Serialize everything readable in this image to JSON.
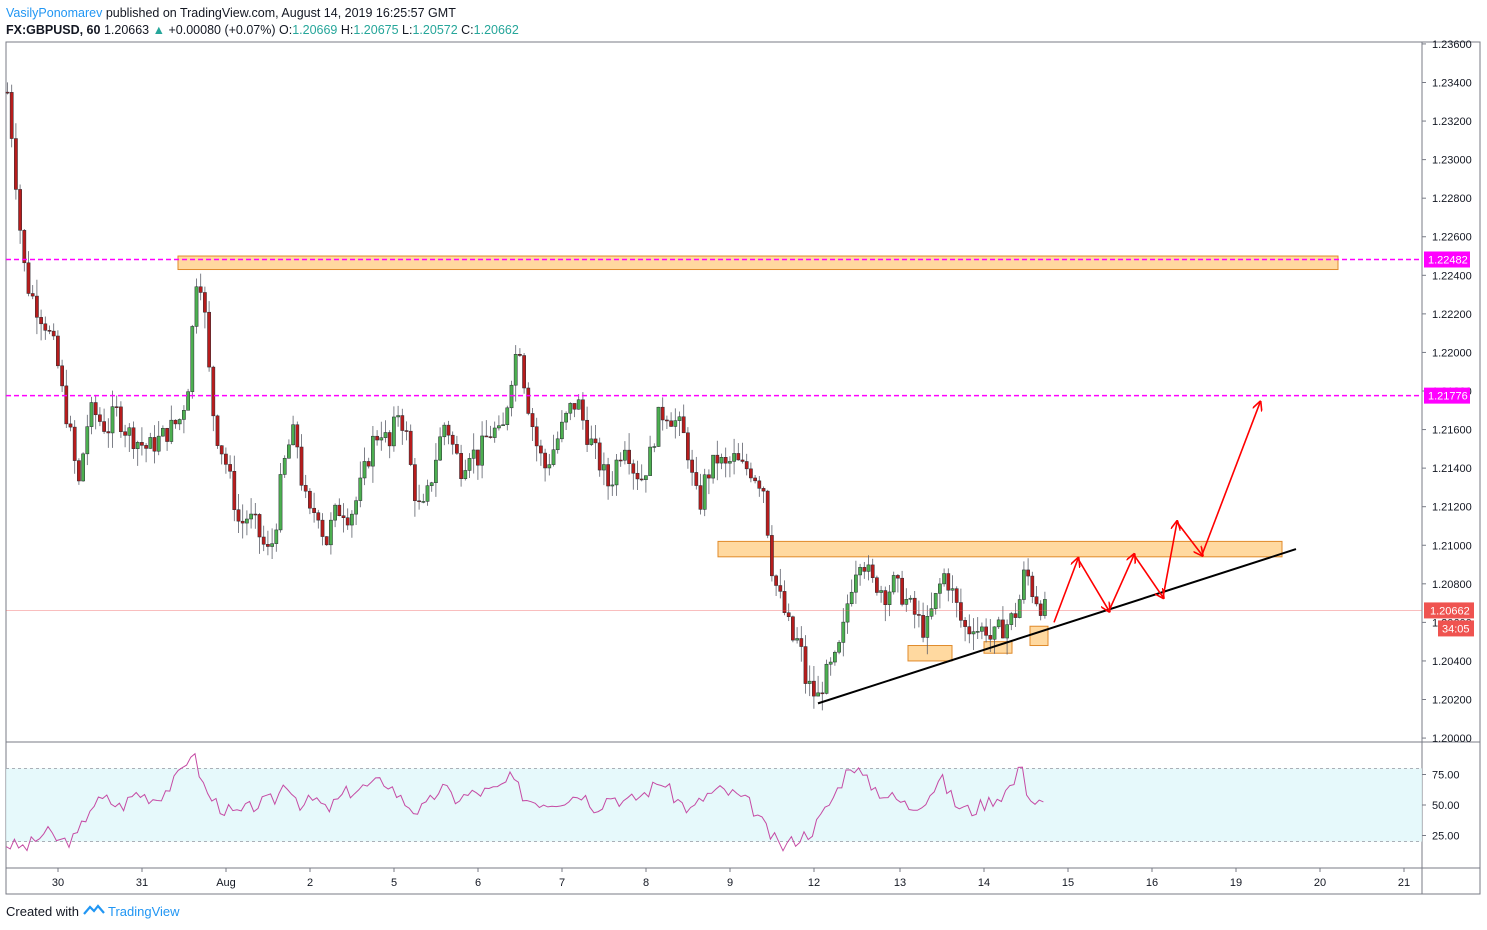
{
  "header": {
    "author": "VasilyPonomarev",
    "published_text": "published on TradingView.com, August 14, 2019 16:25:57 GMT",
    "symbol": "FX:GBPUSD, 60",
    "last": "1.20663",
    "change": "+0.00080 (+0.07%)",
    "o_label": "O:",
    "o": "1.20669",
    "h_label": "H:",
    "h": "1.20675",
    "l_label": "L:",
    "l": "1.20572",
    "c_label": "C:",
    "c": "1.20662"
  },
  "footer": {
    "created_with": "Created with",
    "brand": "TradingView"
  },
  "colors": {
    "up": "#26a69a",
    "down": "#b71c1c",
    "candle_body_up": "#4caf50",
    "zone_fill": "#ffcc80",
    "zone_stroke": "#e08a2a",
    "level_line": "#ff00ff",
    "arrow": "#ff0000",
    "trendline": "#000000",
    "rsi_line": "#c54ba4",
    "rsi_band": "#e0f7fa",
    "price_tag": "#ef5350"
  },
  "chart_data": {
    "type": "candlestick",
    "symbol": "FX:GBPUSD",
    "timeframe": "60",
    "price_axis_ticks": [
      "1.23600",
      "1.23400",
      "1.23200",
      "1.23000",
      "1.22800",
      "1.22600",
      "1.22400",
      "1.22200",
      "1.22000",
      "1.21800",
      "1.21600",
      "1.21400",
      "1.21200",
      "1.21000",
      "1.20800",
      "1.20600",
      "1.20400",
      "1.20200",
      "1.20000"
    ],
    "ylim": [
      1.1999,
      1.2361
    ],
    "time_axis_labels": [
      "30",
      "31",
      "Aug",
      "2",
      "5",
      "6",
      "7",
      "8",
      "9",
      "12",
      "13",
      "14",
      "15",
      "16",
      "19",
      "20",
      "21"
    ],
    "price_path": [
      [
        0,
        1.2335
      ],
      [
        5,
        1.231
      ],
      [
        10,
        1.228
      ],
      [
        15,
        1.225
      ],
      [
        20,
        1.2235
      ],
      [
        28,
        1.2225
      ],
      [
        38,
        1.2215
      ],
      [
        48,
        1.22
      ],
      [
        56,
        1.2175
      ],
      [
        62,
        1.216
      ],
      [
        68,
        1.214
      ],
      [
        72,
        1.213
      ],
      [
        78,
        1.216
      ],
      [
        85,
        1.217
      ],
      [
        92,
        1.2165
      ],
      [
        100,
        1.216
      ],
      [
        108,
        1.217
      ],
      [
        118,
        1.216
      ],
      [
        128,
        1.2155
      ],
      [
        140,
        1.215
      ],
      [
        152,
        1.2155
      ],
      [
        162,
        1.216
      ],
      [
        172,
        1.2165
      ],
      [
        180,
        1.218
      ],
      [
        186,
        1.222
      ],
      [
        190,
        1.2245
      ],
      [
        194,
        1.2235
      ],
      [
        198,
        1.2215
      ],
      [
        203,
        1.218
      ],
      [
        208,
        1.216
      ],
      [
        214,
        1.215
      ],
      [
        220,
        1.214
      ],
      [
        226,
        1.2125
      ],
      [
        232,
        1.211
      ],
      [
        240,
        1.2115
      ],
      [
        248,
        1.211
      ],
      [
        256,
        1.21
      ],
      [
        262,
        1.2095
      ],
      [
        268,
        1.211
      ],
      [
        274,
        1.2135
      ],
      [
        280,
        1.215
      ],
      [
        288,
        1.216
      ],
      [
        295,
        1.213
      ],
      [
        302,
        1.2115
      ],
      [
        310,
        1.212
      ],
      [
        318,
        1.21
      ],
      [
        326,
        1.2115
      ],
      [
        334,
        1.212
      ],
      [
        342,
        1.2115
      ],
      [
        350,
        1.2125
      ],
      [
        358,
        1.214
      ],
      [
        366,
        1.2155
      ],
      [
        374,
        1.216
      ],
      [
        382,
        1.215
      ],
      [
        390,
        1.217
      ],
      [
        398,
        1.216
      ],
      [
        406,
        1.213
      ],
      [
        414,
        1.2115
      ],
      [
        422,
        1.213
      ],
      [
        430,
        1.215
      ],
      [
        438,
        1.2165
      ],
      [
        446,
        1.215
      ],
      [
        454,
        1.214
      ],
      [
        462,
        1.215
      ],
      [
        470,
        1.2145
      ],
      [
        478,
        1.2155
      ],
      [
        486,
        1.216
      ],
      [
        494,
        1.2155
      ],
      [
        500,
        1.2175
      ],
      [
        506,
        1.2195
      ],
      [
        512,
        1.2205
      ],
      [
        518,
        1.218
      ],
      [
        524,
        1.2165
      ],
      [
        530,
        1.215
      ],
      [
        538,
        1.214
      ],
      [
        546,
        1.215
      ],
      [
        554,
        1.216
      ],
      [
        562,
        1.217
      ],
      [
        570,
        1.2175
      ],
      [
        578,
        1.216
      ],
      [
        586,
        1.215
      ],
      [
        594,
        1.214
      ],
      [
        602,
        1.213
      ],
      [
        610,
        1.2145
      ],
      [
        618,
        1.2155
      ],
      [
        626,
        1.214
      ],
      [
        634,
        1.2135
      ],
      [
        642,
        1.2145
      ],
      [
        650,
        1.2165
      ],
      [
        658,
        1.217
      ],
      [
        666,
        1.2165
      ],
      [
        674,
        1.216
      ],
      [
        680,
        1.215
      ],
      [
        686,
        1.213
      ],
      [
        692,
        1.212
      ],
      [
        698,
        1.2135
      ],
      [
        704,
        1.214
      ],
      [
        710,
        1.2145
      ],
      [
        718,
        1.214
      ],
      [
        726,
        1.2145
      ],
      [
        734,
        1.214
      ],
      [
        742,
        1.214
      ],
      [
        750,
        1.2135
      ],
      [
        756,
        1.213
      ],
      [
        760,
        1.211
      ],
      [
        764,
        1.209
      ],
      [
        768,
        1.208
      ],
      [
        774,
        1.207
      ],
      [
        780,
        1.206
      ],
      [
        786,
        1.205
      ],
      [
        792,
        1.205
      ],
      [
        798,
        1.203
      ],
      [
        804,
        1.2025
      ],
      [
        810,
        1.202
      ],
      [
        816,
        1.203
      ],
      [
        822,
        1.2035
      ],
      [
        828,
        1.204
      ],
      [
        834,
        1.205
      ],
      [
        840,
        1.207
      ],
      [
        846,
        1.2085
      ],
      [
        852,
        1.2095
      ],
      [
        858,
        1.209
      ],
      [
        864,
        1.208
      ],
      [
        870,
        1.208
      ],
      [
        878,
        1.2075
      ],
      [
        886,
        1.208
      ],
      [
        894,
        1.2075
      ],
      [
        900,
        1.207
      ],
      [
        906,
        1.2065
      ],
      [
        912,
        1.206
      ],
      [
        918,
        1.2055
      ],
      [
        924,
        1.2065
      ],
      [
        930,
        1.2075
      ],
      [
        936,
        1.2085
      ],
      [
        942,
        1.208
      ],
      [
        948,
        1.207
      ],
      [
        954,
        1.206
      ],
      [
        960,
        1.2055
      ],
      [
        966,
        1.206
      ],
      [
        972,
        1.2055
      ],
      [
        978,
        1.2058
      ],
      [
        984,
        1.205
      ],
      [
        990,
        1.2055
      ],
      [
        996,
        1.2058
      ],
      [
        1002,
        1.206
      ],
      [
        1008,
        1.2065
      ],
      [
        1014,
        1.2075
      ],
      [
        1018,
        1.209
      ],
      [
        1022,
        1.208
      ],
      [
        1026,
        1.2075
      ],
      [
        1032,
        1.207
      ],
      [
        1038,
        1.2066
      ]
    ],
    "horizontal_levels": [
      {
        "price": 1.22482,
        "label": "1.22482",
        "style": "dashed"
      },
      {
        "price": 1.21776,
        "label": "1.21776",
        "style": "dashed"
      }
    ],
    "current_price": {
      "price": 1.20662,
      "label": "1.20662",
      "countdown": "34:05"
    },
    "zones": [
      {
        "name": "resistance-upper",
        "price_top": 1.225,
        "price_bottom": 1.2243,
        "from_bar": 172,
        "to_bar": 1332
      },
      {
        "name": "resistance-lower",
        "price_top": 1.2102,
        "price_bottom": 1.2094,
        "from_bar": 712,
        "to_bar": 1276
      },
      {
        "name": "support-1",
        "price_top": 1.2048,
        "price_bottom": 1.204,
        "from_bar": 902,
        "to_bar": 946
      },
      {
        "name": "support-2",
        "price_top": 1.205,
        "price_bottom": 1.2044,
        "from_bar": 978,
        "to_bar": 1006
      },
      {
        "name": "support-3",
        "price_top": 1.2058,
        "price_bottom": 1.2048,
        "from_bar": 1024,
        "to_bar": 1042
      }
    ],
    "trendline": {
      "from": [
        812,
        1.2018
      ],
      "to": [
        1290,
        1.2098
      ]
    },
    "projection_path": [
      [
        1048,
        1.206
      ],
      [
        1072,
        1.2093
      ],
      [
        1103,
        1.2066
      ],
      [
        1128,
        1.2095
      ],
      [
        1157,
        1.2073
      ],
      [
        1171,
        1.2112
      ],
      [
        1196,
        1.2095
      ],
      [
        1254,
        1.2174
      ]
    ],
    "rsi": {
      "ticks": [
        "75.00",
        "50.00",
        "25.00"
      ],
      "upper": 80,
      "lower": 20,
      "ylim": [
        0,
        100
      ],
      "values": [
        [
          0,
          18
        ],
        [
          20,
          15
        ],
        [
          40,
          28
        ],
        [
          55,
          20
        ],
        [
          70,
          22
        ],
        [
          85,
          50
        ],
        [
          100,
          55
        ],
        [
          115,
          48
        ],
        [
          130,
          60
        ],
        [
          150,
          55
        ],
        [
          170,
          70
        ],
        [
          186,
          95
        ],
        [
          200,
          60
        ],
        [
          215,
          48
        ],
        [
          230,
          42
        ],
        [
          250,
          50
        ],
        [
          270,
          55
        ],
        [
          280,
          70
        ],
        [
          295,
          50
        ],
        [
          310,
          55
        ],
        [
          320,
          45
        ],
        [
          340,
          60
        ],
        [
          360,
          65
        ],
        [
          380,
          70
        ],
        [
          395,
          55
        ],
        [
          410,
          45
        ],
        [
          420,
          48
        ],
        [
          435,
          65
        ],
        [
          450,
          55
        ],
        [
          470,
          60
        ],
        [
          490,
          62
        ],
        [
          505,
          72
        ],
        [
          520,
          55
        ],
        [
          540,
          52
        ],
        [
          560,
          55
        ],
        [
          575,
          60
        ],
        [
          590,
          48
        ],
        [
          605,
          58
        ],
        [
          620,
          52
        ],
        [
          640,
          60
        ],
        [
          655,
          70
        ],
        [
          670,
          55
        ],
        [
          685,
          45
        ],
        [
          700,
          58
        ],
        [
          715,
          62
        ],
        [
          730,
          58
        ],
        [
          745,
          50
        ],
        [
          760,
          30
        ],
        [
          775,
          15
        ],
        [
          790,
          22
        ],
        [
          805,
          28
        ],
        [
          815,
          40
        ],
        [
          830,
          60
        ],
        [
          845,
          85
        ],
        [
          860,
          70
        ],
        [
          875,
          60
        ],
        [
          890,
          55
        ],
        [
          905,
          48
        ],
        [
          920,
          55
        ],
        [
          935,
          72
        ],
        [
          950,
          50
        ],
        [
          965,
          45
        ],
        [
          980,
          52
        ],
        [
          995,
          58
        ],
        [
          1010,
          70
        ],
        [
          1016,
          88
        ],
        [
          1022,
          55
        ],
        [
          1030,
          52
        ],
        [
          1038,
          50
        ]
      ]
    }
  }
}
